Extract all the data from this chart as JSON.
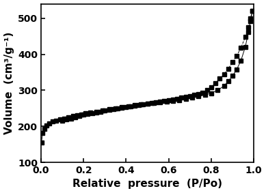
{
  "title": "",
  "xlabel": "Relative  pressure  (P/Po)",
  "ylabel": "Volume  (cm³/g⁻¹)",
  "xlim": [
    0.0,
    1.0
  ],
  "ylim": [
    100,
    540
  ],
  "yticks": [
    100,
    200,
    300,
    400,
    500
  ],
  "xticks": [
    0.0,
    0.2,
    0.4,
    0.6,
    0.8,
    1.0
  ],
  "adsorption_x": [
    0.002,
    0.008,
    0.015,
    0.025,
    0.04,
    0.055,
    0.07,
    0.09,
    0.11,
    0.13,
    0.15,
    0.17,
    0.19,
    0.21,
    0.23,
    0.26,
    0.29,
    0.32,
    0.35,
    0.38,
    0.41,
    0.44,
    0.47,
    0.5,
    0.53,
    0.56,
    0.59,
    0.62,
    0.65,
    0.68,
    0.71,
    0.74,
    0.77,
    0.8,
    0.83,
    0.86,
    0.88,
    0.9,
    0.92,
    0.94,
    0.96,
    0.975,
    0.985,
    0.993
  ],
  "adsorption_y": [
    155,
    182,
    193,
    202,
    208,
    213,
    216,
    219,
    222,
    225,
    228,
    230,
    233,
    236,
    238,
    241,
    244,
    247,
    250,
    253,
    256,
    259,
    261,
    263,
    265,
    267,
    269,
    271,
    273,
    276,
    279,
    283,
    287,
    292,
    300,
    312,
    325,
    340,
    358,
    383,
    420,
    462,
    492,
    520
  ],
  "desorption_x": [
    0.993,
    0.985,
    0.975,
    0.96,
    0.94,
    0.92,
    0.9,
    0.88,
    0.86,
    0.84,
    0.82,
    0.8,
    0.78,
    0.76,
    0.74,
    0.72,
    0.7,
    0.68,
    0.66,
    0.64,
    0.62,
    0.6,
    0.58,
    0.56,
    0.54,
    0.52,
    0.5,
    0.48,
    0.46,
    0.44,
    0.42,
    0.4,
    0.38,
    0.36,
    0.34,
    0.32,
    0.3,
    0.28,
    0.26,
    0.24,
    0.22,
    0.2,
    0.18,
    0.16,
    0.14,
    0.12,
    0.1
  ],
  "desorption_y": [
    520,
    500,
    475,
    448,
    418,
    396,
    378,
    360,
    345,
    332,
    320,
    308,
    300,
    294,
    290,
    287,
    284,
    281,
    279,
    277,
    275,
    273,
    271,
    269,
    267,
    265,
    263,
    261,
    259,
    257,
    255,
    253,
    251,
    249,
    247,
    245,
    243,
    241,
    239,
    237,
    235,
    232,
    228,
    225,
    222,
    219,
    215
  ],
  "line_color": "black",
  "marker": "s",
  "markersize": 3.8,
  "linewidth": 0.7,
  "background_color": "#ffffff",
  "xlabel_fontsize": 11,
  "ylabel_fontsize": 11,
  "tick_fontsize": 10,
  "tick_fontweight": "bold",
  "label_fontweight": "bold"
}
